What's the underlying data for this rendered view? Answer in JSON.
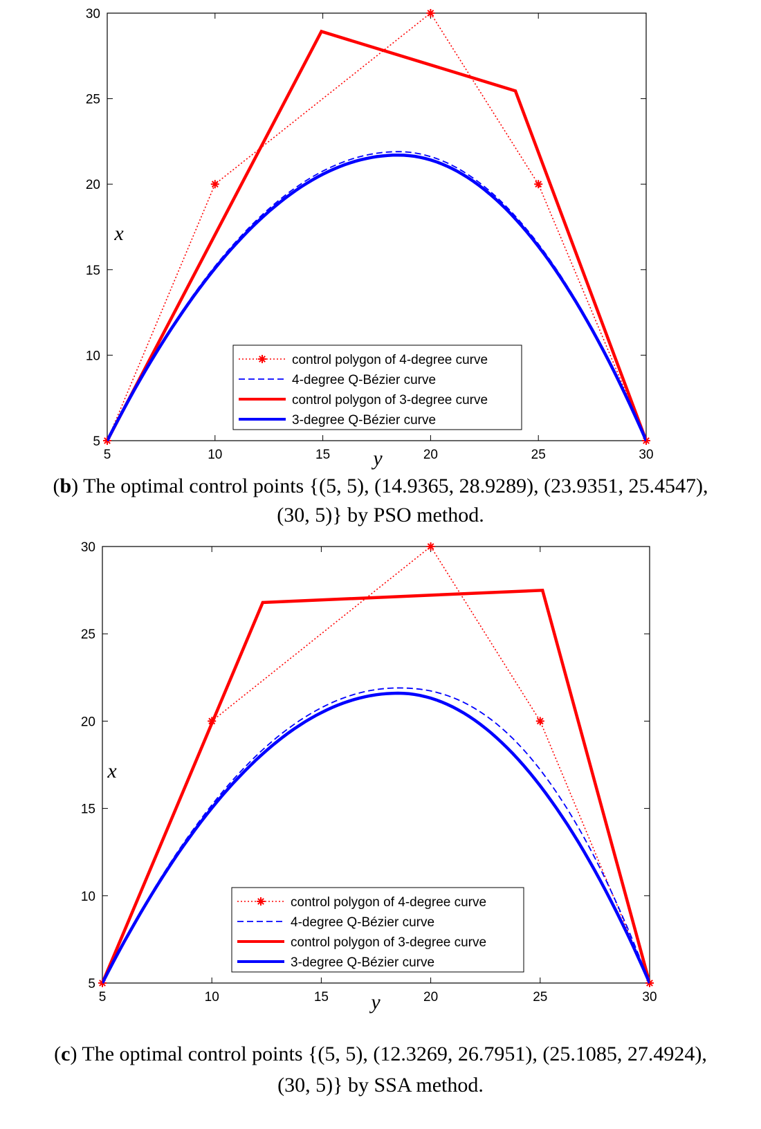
{
  "chart_data": [
    {
      "type": "line",
      "panel_letter": "b",
      "caption_line1": "The optimal control points {(5, 5), (14.9365, 28.9289), (23.9351, 25.4547),",
      "caption_line2": "(30, 5)} by PSO method.",
      "xlabel": "y",
      "ylabel": "x",
      "xlim": [
        5,
        30
      ],
      "ylim": [
        5,
        30
      ],
      "xticks": [
        "5",
        "10",
        "15",
        "20",
        "25",
        "30"
      ],
      "yticks": [
        "5",
        "10",
        "15",
        "20",
        "25",
        "30"
      ],
      "legend_position": "bottom-center",
      "series": [
        {
          "name": "control polygon of 4-degree curve",
          "style": "dotted-star",
          "color": "#ff0000",
          "points": [
            [
              5,
              5
            ],
            [
              10,
              20
            ],
            [
              20,
              30
            ],
            [
              25,
              20
            ],
            [
              30,
              5
            ]
          ]
        },
        {
          "name": "4-degree Q-Bézier curve",
          "style": "dashed",
          "color": "#0000ff",
          "peak": 21.9,
          "peak_at": 18.5
        },
        {
          "name": "control polygon of 3-degree curve",
          "style": "thick-solid",
          "color": "#ff0000",
          "points": [
            [
              5,
              5
            ],
            [
              14.9365,
              28.9289
            ],
            [
              23.9351,
              25.4547
            ],
            [
              30,
              5
            ]
          ]
        },
        {
          "name": "3-degree Q-Bézier curve",
          "style": "thick-solid",
          "color": "#0000ff",
          "peak": 21.7,
          "peak_at": 18.5
        }
      ]
    },
    {
      "type": "line",
      "panel_letter": "c",
      "caption_line1": "The optimal control points {(5, 5), (12.3269, 26.7951), (25.1085, 27.4924),",
      "caption_line2": "(30, 5)} by SSA method.",
      "xlabel": "y",
      "ylabel": "x",
      "xlim": [
        5,
        30
      ],
      "ylim": [
        5,
        30
      ],
      "xticks": [
        "5",
        "10",
        "15",
        "20",
        "25",
        "30"
      ],
      "yticks": [
        "5",
        "10",
        "15",
        "20",
        "25",
        "30"
      ],
      "legend_position": "bottom-center",
      "series": [
        {
          "name": "control polygon of 4-degree curve",
          "style": "dotted-star",
          "color": "#ff0000",
          "points": [
            [
              5,
              5
            ],
            [
              10,
              20
            ],
            [
              20,
              30
            ],
            [
              25,
              20
            ],
            [
              30,
              5
            ]
          ]
        },
        {
          "name": "4-degree Q-Bézier curve",
          "style": "dashed",
          "color": "#0000ff",
          "peak": 21.9,
          "peak_at": 18.5
        },
        {
          "name": "control polygon of 3-degree curve",
          "style": "thick-solid",
          "color": "#ff0000",
          "points": [
            [
              5,
              5
            ],
            [
              12.3269,
              26.7951
            ],
            [
              25.1085,
              27.4924
            ],
            [
              30,
              5
            ]
          ]
        },
        {
          "name": "3-degree Q-Bézier curve",
          "style": "thick-solid",
          "color": "#0000ff",
          "peak": 21.6,
          "peak_at": 18.5
        }
      ]
    }
  ]
}
